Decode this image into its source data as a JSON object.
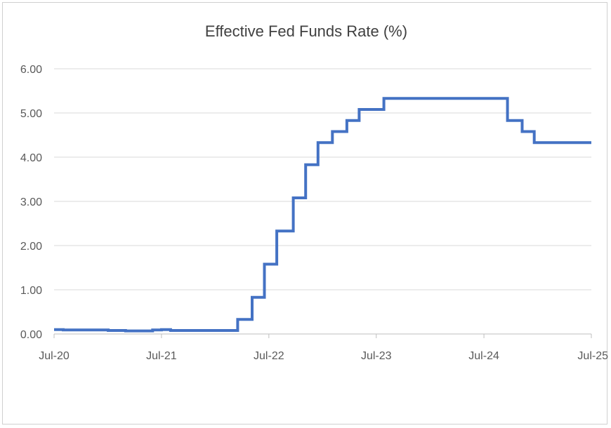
{
  "chart_data": {
    "type": "line",
    "title": "Effective Fed Funds Rate (%)",
    "xlabel": "",
    "ylabel": "",
    "ylim": [
      0,
      6
    ],
    "yticks": [
      "0.00",
      "1.00",
      "2.00",
      "3.00",
      "4.00",
      "5.00",
      "6.00"
    ],
    "xticks": [
      "Jul-20",
      "Jul-21",
      "Jul-22",
      "Jul-23",
      "Jul-24",
      "Jul-25"
    ],
    "grid": true,
    "legend": "none",
    "color": "#4472c4",
    "series": [
      {
        "step": true,
        "points": [
          [
            "2020-07-01",
            0.1
          ],
          [
            "2020-08-01",
            0.09
          ],
          [
            "2020-10-01",
            0.09
          ],
          [
            "2021-01-01",
            0.08
          ],
          [
            "2021-03-01",
            0.07
          ],
          [
            "2021-06-01",
            0.09
          ],
          [
            "2021-07-01",
            0.1
          ],
          [
            "2021-08-01",
            0.08
          ],
          [
            "2021-12-01",
            0.08
          ],
          [
            "2022-03-17",
            0.33
          ],
          [
            "2022-05-05",
            0.83
          ],
          [
            "2022-06-16",
            1.58
          ],
          [
            "2022-07-28",
            2.33
          ],
          [
            "2022-09-22",
            3.08
          ],
          [
            "2022-11-03",
            3.83
          ],
          [
            "2022-12-15",
            4.33
          ],
          [
            "2023-02-02",
            4.58
          ],
          [
            "2023-03-23",
            4.83
          ],
          [
            "2023-05-04",
            5.08
          ],
          [
            "2023-07-27",
            5.33
          ],
          [
            "2024-09-19",
            4.83
          ],
          [
            "2024-11-08",
            4.58
          ],
          [
            "2024-12-19",
            4.33
          ],
          [
            "2025-07-01",
            4.33
          ]
        ]
      }
    ]
  }
}
